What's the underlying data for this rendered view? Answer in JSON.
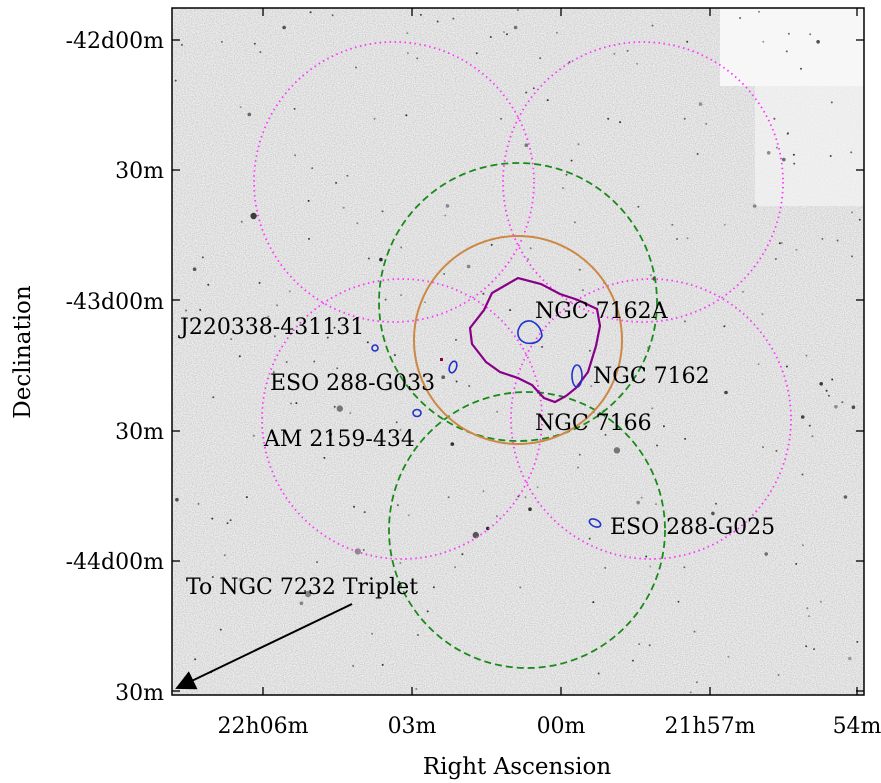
{
  "chart_data": {
    "type": "scatter",
    "title": "",
    "xlabel": "Right Ascension",
    "ylabel": "Declination",
    "x_ticks": [
      "22h06m",
      "03m",
      "00m",
      "21h57m",
      "54m"
    ],
    "y_ticks": [
      "-42d00m",
      "30m",
      "-43d00m",
      "30m",
      "-44d00m",
      "30m"
    ],
    "grid": false,
    "background": "optical sky survey image (inverted greyscale)",
    "galaxies": [
      {
        "label": "NGC 7162A"
      },
      {
        "label": "J220338-431131"
      },
      {
        "label": "ESO 288-G033"
      },
      {
        "label": "NGC 7162"
      },
      {
        "label": "NGC 7166"
      },
      {
        "label": "AM 2159-434"
      },
      {
        "label": "ESO 288-G025"
      }
    ],
    "arrow_annotation": {
      "label": "To NGC 7232 Triplet"
    },
    "beams": [
      {
        "style": "dotted",
        "color": "#ff33ff",
        "count": 4
      },
      {
        "style": "dashed",
        "color": "#1a8a1a",
        "count": 2
      },
      {
        "style": "solid",
        "color": "#cc8844",
        "count": 1
      }
    ],
    "contour_colors": {
      "hi_group": "#880088",
      "detections": "#2233cc"
    }
  }
}
